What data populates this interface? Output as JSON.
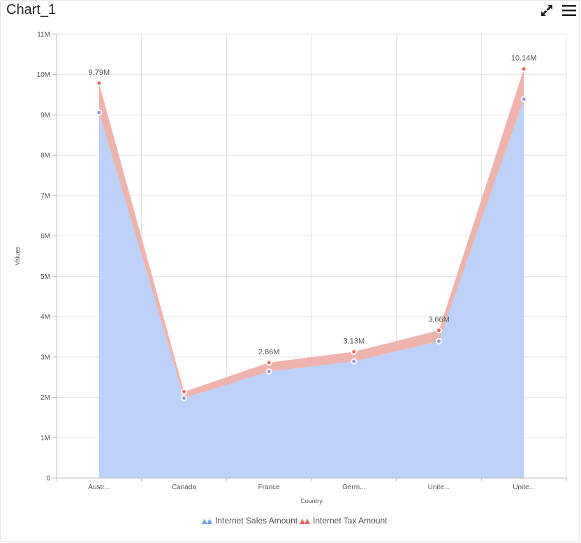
{
  "header": {
    "title": "Chart_1",
    "expand_icon": "expand-icon",
    "menu_icon": "hamburger-menu-icon"
  },
  "colors": {
    "sales_fill": "#bcd2fa",
    "sales_marker": "#8f96d6",
    "tax_fill": "#efb3ae",
    "tax_marker": "#e8675c",
    "grid": "#e3e3e3",
    "axis": "#bbbbbb",
    "legend_sales": "#6fa0ef",
    "legend_tax": "#e8675c"
  },
  "chart_data": {
    "type": "area",
    "stacked": true,
    "categories": [
      "Austr...",
      "Canada",
      "France",
      "Germ...",
      "Unite...",
      "Unite..."
    ],
    "series": [
      {
        "name": "Internet Sales Amount",
        "values": [
          9.06,
          1.98,
          2.64,
          2.89,
          3.39,
          9.39
        ]
      },
      {
        "name": "Internet Tax Amount",
        "values": [
          0.73,
          0.16,
          0.22,
          0.24,
          0.27,
          0.75
        ]
      }
    ],
    "cumulative_labels": [
      "9.79M",
      "",
      "2.86M",
      "3.13M",
      "3.66M",
      "10.14M"
    ],
    "xlabel": "Country",
    "ylabel": "Values",
    "unit": "M",
    "ylim": [
      0,
      11
    ],
    "yticks": [
      0,
      1,
      2,
      3,
      4,
      5,
      6,
      7,
      8,
      9,
      10,
      11
    ],
    "ytick_labels": [
      "0",
      "1M",
      "2M",
      "3M",
      "4M",
      "5M",
      "6M",
      "7M",
      "8M",
      "9M",
      "10M",
      "11M"
    ],
    "grid": true,
    "legend_position": "bottom"
  }
}
